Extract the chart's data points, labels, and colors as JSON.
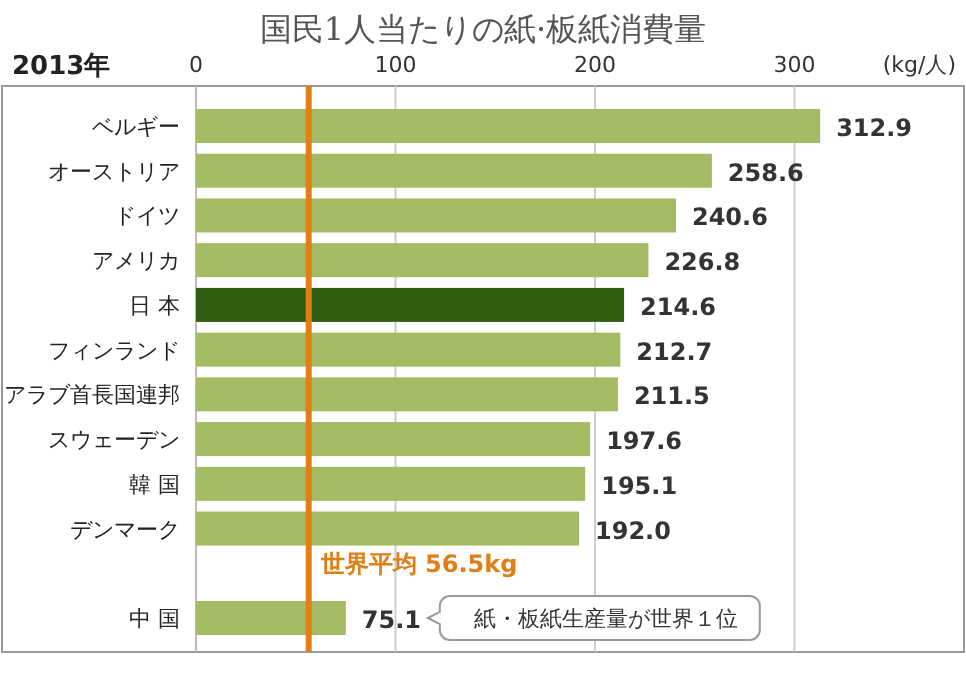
{
  "chart_data": {
    "type": "bar",
    "orientation": "horizontal",
    "title": "国民1人当たりの紙·板紙消費量",
    "subtitle": "2013年",
    "xlabel": "(kg/人)",
    "categories": [
      "ベルギー",
      "オーストリア",
      "ドイツ",
      "アメリカ",
      "日 本",
      "フィンランド",
      "アラブ首長国連邦",
      "スウェーデン",
      "韓 国",
      "デンマーク",
      null,
      "中 国"
    ],
    "values": [
      312.9,
      258.6,
      240.6,
      226.8,
      214.6,
      212.7,
      211.5,
      197.6,
      195.1,
      192.0,
      null,
      75.1
    ],
    "colors": [
      "#a3bb63",
      "#a3bb63",
      "#a3bb63",
      "#a3bb63",
      "#2f5e10",
      "#a3bb63",
      "#a3bb63",
      "#a3bb63",
      "#a3bb63",
      "#a3bb63",
      null,
      "#a3bb63"
    ],
    "value_labels": [
      "312.9",
      "258.6",
      "240.6",
      "226.8",
      "214.6",
      "212.7",
      "211.5",
      "197.6",
      "195.1",
      "192.0",
      null,
      "75.1"
    ],
    "xlim": [
      0,
      386
    ],
    "xticks": [
      0,
      100,
      200,
      300
    ],
    "grid": "x",
    "ref_lines": [
      {
        "axis": "x",
        "value": 56.5,
        "label": "世界平均 56.5kg",
        "color": "#e07f16"
      }
    ],
    "annotations": [
      "紙・板紙生産量が世界１位"
    ]
  }
}
